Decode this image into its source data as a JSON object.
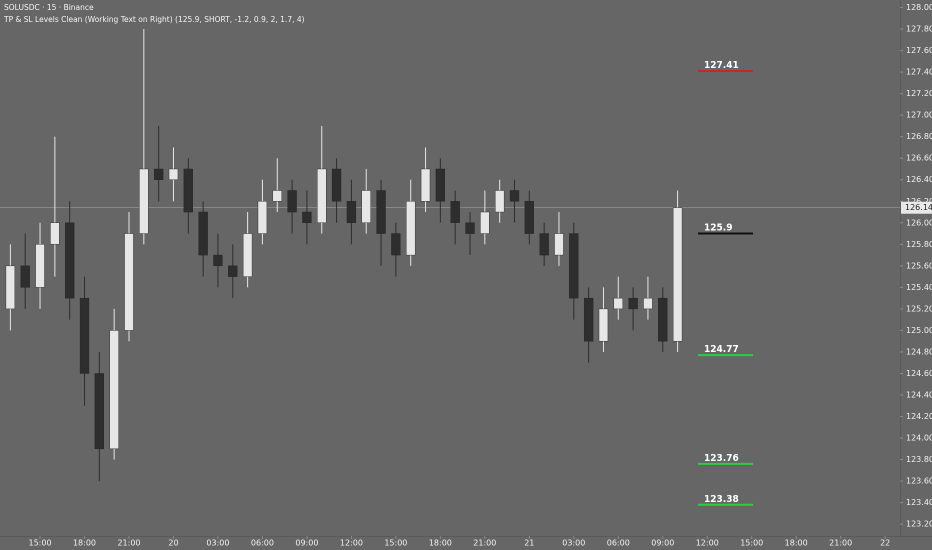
{
  "chart_data": {
    "type": "candlestick",
    "title": "SOLUSDC · 15 · Binance",
    "subtitle": "TP & SL Levels Clean (Working Text on Right) (125.9, SHORT, -1.2, 0.9, 2, 1.7, 4)",
    "x": [
      13,
      14,
      15,
      16,
      17,
      18,
      19,
      20,
      21,
      22,
      23,
      24,
      25,
      26,
      27,
      28,
      29,
      30,
      31,
      32,
      33,
      34,
      35,
      36,
      37,
      38,
      39,
      40,
      41,
      42,
      43,
      44,
      45,
      46,
      47,
      48,
      49,
      50,
      51,
      52,
      53,
      54,
      55,
      56,
      57,
      58
    ],
    "open": [
      125.2,
      125.6,
      125.4,
      125.8,
      126.0,
      125.3,
      124.6,
      123.9,
      125.0,
      125.9,
      126.5,
      126.4,
      126.5,
      126.1,
      125.7,
      125.6,
      125.5,
      125.9,
      126.2,
      126.3,
      126.1,
      126.0,
      126.5,
      126.2,
      126.0,
      126.3,
      125.9,
      125.7,
      126.2,
      126.5,
      126.2,
      126.0,
      125.9,
      126.1,
      126.3,
      126.2,
      125.9,
      125.7,
      125.9,
      125.3,
      124.9,
      125.2,
      125.3,
      125.2,
      125.3,
      124.9
    ],
    "high": [
      125.8,
      125.9,
      126.0,
      126.8,
      126.2,
      125.5,
      124.8,
      125.2,
      126.1,
      127.8,
      126.9,
      126.7,
      126.6,
      126.2,
      125.9,
      125.8,
      126.1,
      126.4,
      126.6,
      126.4,
      126.3,
      126.9,
      126.6,
      126.4,
      126.5,
      126.4,
      126.0,
      126.4,
      126.7,
      126.6,
      126.3,
      126.1,
      126.3,
      126.4,
      126.4,
      126.3,
      126.0,
      126.1,
      126.0,
      125.4,
      125.4,
      125.5,
      125.4,
      125.5,
      125.4,
      126.3
    ],
    "low": [
      125.0,
      125.2,
      125.2,
      125.5,
      125.1,
      124.3,
      123.6,
      123.8,
      124.9,
      125.8,
      126.2,
      126.2,
      125.9,
      125.5,
      125.4,
      125.3,
      125.4,
      125.8,
      126.1,
      125.9,
      125.8,
      125.9,
      126.0,
      125.8,
      125.9,
      125.6,
      125.5,
      125.6,
      126.1,
      126.0,
      125.8,
      125.7,
      125.8,
      126.0,
      126.0,
      125.8,
      125.6,
      125.6,
      125.1,
      124.7,
      124.8,
      125.1,
      125.0,
      125.1,
      124.8,
      124.8
    ],
    "close": [
      125.6,
      125.4,
      125.8,
      126.0,
      125.3,
      124.6,
      123.9,
      125.0,
      125.9,
      126.5,
      126.4,
      126.5,
      126.1,
      125.7,
      125.6,
      125.5,
      125.9,
      126.2,
      126.3,
      126.1,
      126.0,
      126.5,
      126.2,
      126.0,
      126.3,
      125.9,
      125.7,
      126.2,
      126.5,
      126.2,
      126.0,
      125.9,
      126.1,
      126.3,
      126.2,
      125.9,
      125.7,
      125.9,
      125.3,
      124.9,
      125.2,
      125.3,
      125.2,
      125.3,
      124.9,
      126.14
    ],
    "up_color": "#e6e6e6",
    "down_color": "#2e2e2e",
    "xlim": [
      12.3,
      73
    ],
    "xticks": [
      {
        "value": 15,
        "label": "15:00"
      },
      {
        "value": 18,
        "label": "18:00"
      },
      {
        "value": 21,
        "label": "21:00"
      },
      {
        "value": 24,
        "label": "20"
      },
      {
        "value": 27,
        "label": "03:00"
      },
      {
        "value": 30,
        "label": "06:00"
      },
      {
        "value": 33,
        "label": "09:00"
      },
      {
        "value": 36,
        "label": "12:00"
      },
      {
        "value": 39,
        "label": "15:00"
      },
      {
        "value": 42,
        "label": "18:00"
      },
      {
        "value": 45,
        "label": "21:00"
      },
      {
        "value": 48,
        "label": "21"
      },
      {
        "value": 51,
        "label": "03:00"
      },
      {
        "value": 54,
        "label": "06:00"
      },
      {
        "value": 57,
        "label": "09:00"
      },
      {
        "value": 60,
        "label": "12:00"
      },
      {
        "value": 63,
        "label": "15:00"
      },
      {
        "value": 66,
        "label": "18:00"
      },
      {
        "value": 69,
        "label": "21:00"
      },
      {
        "value": 72,
        "label": "22"
      }
    ],
    "ylim": [
      123.09,
      128.07
    ],
    "yticks": [
      {
        "value": 123.2,
        "label": "123.20"
      },
      {
        "value": 123.4,
        "label": "123.40"
      },
      {
        "value": 123.6,
        "label": "123.60"
      },
      {
        "value": 123.8,
        "label": "123.80"
      },
      {
        "value": 124.0,
        "label": "124.00"
      },
      {
        "value": 124.2,
        "label": "124.20"
      },
      {
        "value": 124.4,
        "label": "124.40"
      },
      {
        "value": 124.6,
        "label": "124.60"
      },
      {
        "value": 124.8,
        "label": "124.80"
      },
      {
        "value": 125.0,
        "label": "125.00"
      },
      {
        "value": 125.2,
        "label": "125.20"
      },
      {
        "value": 125.4,
        "label": "125.40"
      },
      {
        "value": 125.6,
        "label": "125.60"
      },
      {
        "value": 125.8,
        "label": "125.80"
      },
      {
        "value": 126.0,
        "label": "126.00"
      },
      {
        "value": 126.2,
        "label": "126.20"
      },
      {
        "value": 126.4,
        "label": "126.40"
      },
      {
        "value": 126.6,
        "label": "126.60"
      },
      {
        "value": 126.8,
        "label": "126.80"
      },
      {
        "value": 127.0,
        "label": "127.00"
      },
      {
        "value": 127.2,
        "label": "127.20"
      },
      {
        "value": 127.4,
        "label": "127.40"
      },
      {
        "value": 127.6,
        "label": "127.60"
      },
      {
        "value": 127.8,
        "label": "127.80"
      },
      {
        "value": 128.0,
        "label": "128.00"
      }
    ],
    "last_price": 126.14,
    "levels": [
      {
        "value": 127.41,
        "color": "#c62828"
      },
      {
        "value": 125.9,
        "color": "#111111"
      },
      {
        "value": 124.77,
        "color": "#2ecc40"
      },
      {
        "value": 123.76,
        "color": "#2ecc40"
      },
      {
        "value": 123.38,
        "color": "#2ecc40"
      }
    ]
  }
}
